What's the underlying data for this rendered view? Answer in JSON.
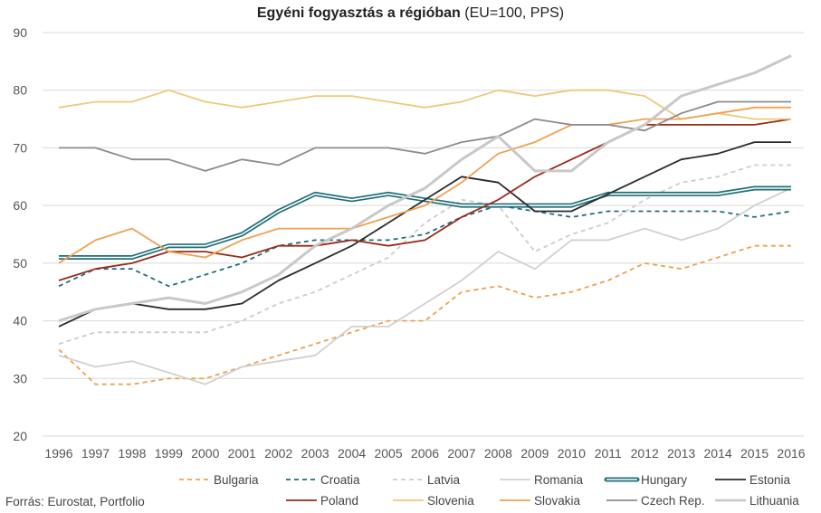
{
  "chart_data": {
    "type": "line",
    "title_bold": "Egyéni fogyasztás a régióban",
    "title_rest": "(EU=100, PPS)",
    "source": "Forrás: Eurostat, Portfolio",
    "x": [
      "1996",
      "1997",
      "1998",
      "1999",
      "2000",
      "2001",
      "2002",
      "2003",
      "2004",
      "2005",
      "2006",
      "2007",
      "2008",
      "2009",
      "2010",
      "2011",
      "2012",
      "2013",
      "2014",
      "2015",
      "2016"
    ],
    "ylim": [
      20,
      90
    ],
    "yticks": [
      20,
      30,
      40,
      50,
      60,
      70,
      80,
      90
    ],
    "grid": true,
    "legend_position": "bottom",
    "series": [
      {
        "name": "Bulgaria",
        "color": "#f0a050",
        "style": "dashed",
        "width": 1.8,
        "values": [
          35,
          29,
          29,
          30,
          30,
          32,
          34,
          36,
          38,
          40,
          40,
          45,
          46,
          44,
          45,
          47,
          50,
          49,
          51,
          53,
          53
        ]
      },
      {
        "name": "Croatia",
        "color": "#1f6f78",
        "style": "dashed",
        "width": 1.8,
        "values": [
          46,
          49,
          49,
          46,
          48,
          50,
          53,
          54,
          54,
          54,
          55,
          58,
          60,
          59,
          58,
          59,
          59,
          59,
          59,
          58,
          59
        ]
      },
      {
        "name": "Latvia",
        "color": "#cccccc",
        "style": "dashed",
        "width": 1.8,
        "values": [
          36,
          38,
          38,
          38,
          38,
          40,
          43,
          45,
          48,
          51,
          57,
          61,
          60,
          52,
          55,
          57,
          61,
          64,
          65,
          67,
          67
        ]
      },
      {
        "name": "Romania",
        "color": "#d0d0d0",
        "style": "solid",
        "width": 1.8,
        "values": [
          34,
          32,
          33,
          31,
          29,
          32,
          33,
          34,
          39,
          39,
          43,
          47,
          52,
          49,
          54,
          54,
          56,
          54,
          56,
          60,
          63
        ]
      },
      {
        "name": "Hungary",
        "color": "#1f6f78",
        "style": "double",
        "width": 2,
        "values": [
          51,
          51,
          51,
          53,
          53,
          55,
          59,
          62,
          61,
          62,
          61,
          60,
          60,
          60,
          60,
          62,
          62,
          62,
          62,
          63,
          63
        ]
      },
      {
        "name": "Estonia",
        "color": "#2b2b2b",
        "style": "solid",
        "width": 1.8,
        "values": [
          39,
          42,
          43,
          42,
          42,
          43,
          47,
          50,
          53,
          57,
          61,
          65,
          64,
          59,
          59,
          62,
          65,
          68,
          69,
          71,
          71
        ]
      },
      {
        "name": "Poland",
        "color": "#9b2a1a",
        "style": "solid",
        "width": 1.8,
        "values": [
          47,
          49,
          50,
          52,
          52,
          51,
          53,
          53,
          54,
          53,
          54,
          58,
          61,
          65,
          68,
          71,
          74,
          74,
          74,
          74,
          75
        ]
      },
      {
        "name": "Slovenia",
        "color": "#f0c878",
        "style": "solid",
        "width": 1.8,
        "values": [
          77,
          78,
          78,
          80,
          78,
          77,
          78,
          79,
          79,
          78,
          77,
          78,
          80,
          79,
          80,
          80,
          79,
          75,
          76,
          75,
          75
        ]
      },
      {
        "name": "Slovakia",
        "color": "#f0a050",
        "style": "solid",
        "width": 1.8,
        "values": [
          50,
          54,
          56,
          52,
          51,
          54,
          56,
          56,
          56,
          58,
          60,
          64,
          69,
          71,
          74,
          74,
          75,
          75,
          76,
          77,
          77
        ]
      },
      {
        "name": "Czech Rep.",
        "color": "#8c8c8c",
        "style": "solid",
        "width": 1.8,
        "values": [
          70,
          70,
          68,
          68,
          66,
          68,
          67,
          70,
          70,
          70,
          69,
          71,
          72,
          75,
          74,
          74,
          73,
          76,
          78,
          78,
          78
        ]
      },
      {
        "name": "Lithuania",
        "color": "#c8c8c8",
        "style": "solid",
        "width": 3,
        "values": [
          40,
          42,
          43,
          44,
          43,
          45,
          48,
          53,
          56,
          60,
          63,
          68,
          72,
          66,
          66,
          71,
          74,
          79,
          81,
          83,
          86
        ]
      }
    ]
  }
}
